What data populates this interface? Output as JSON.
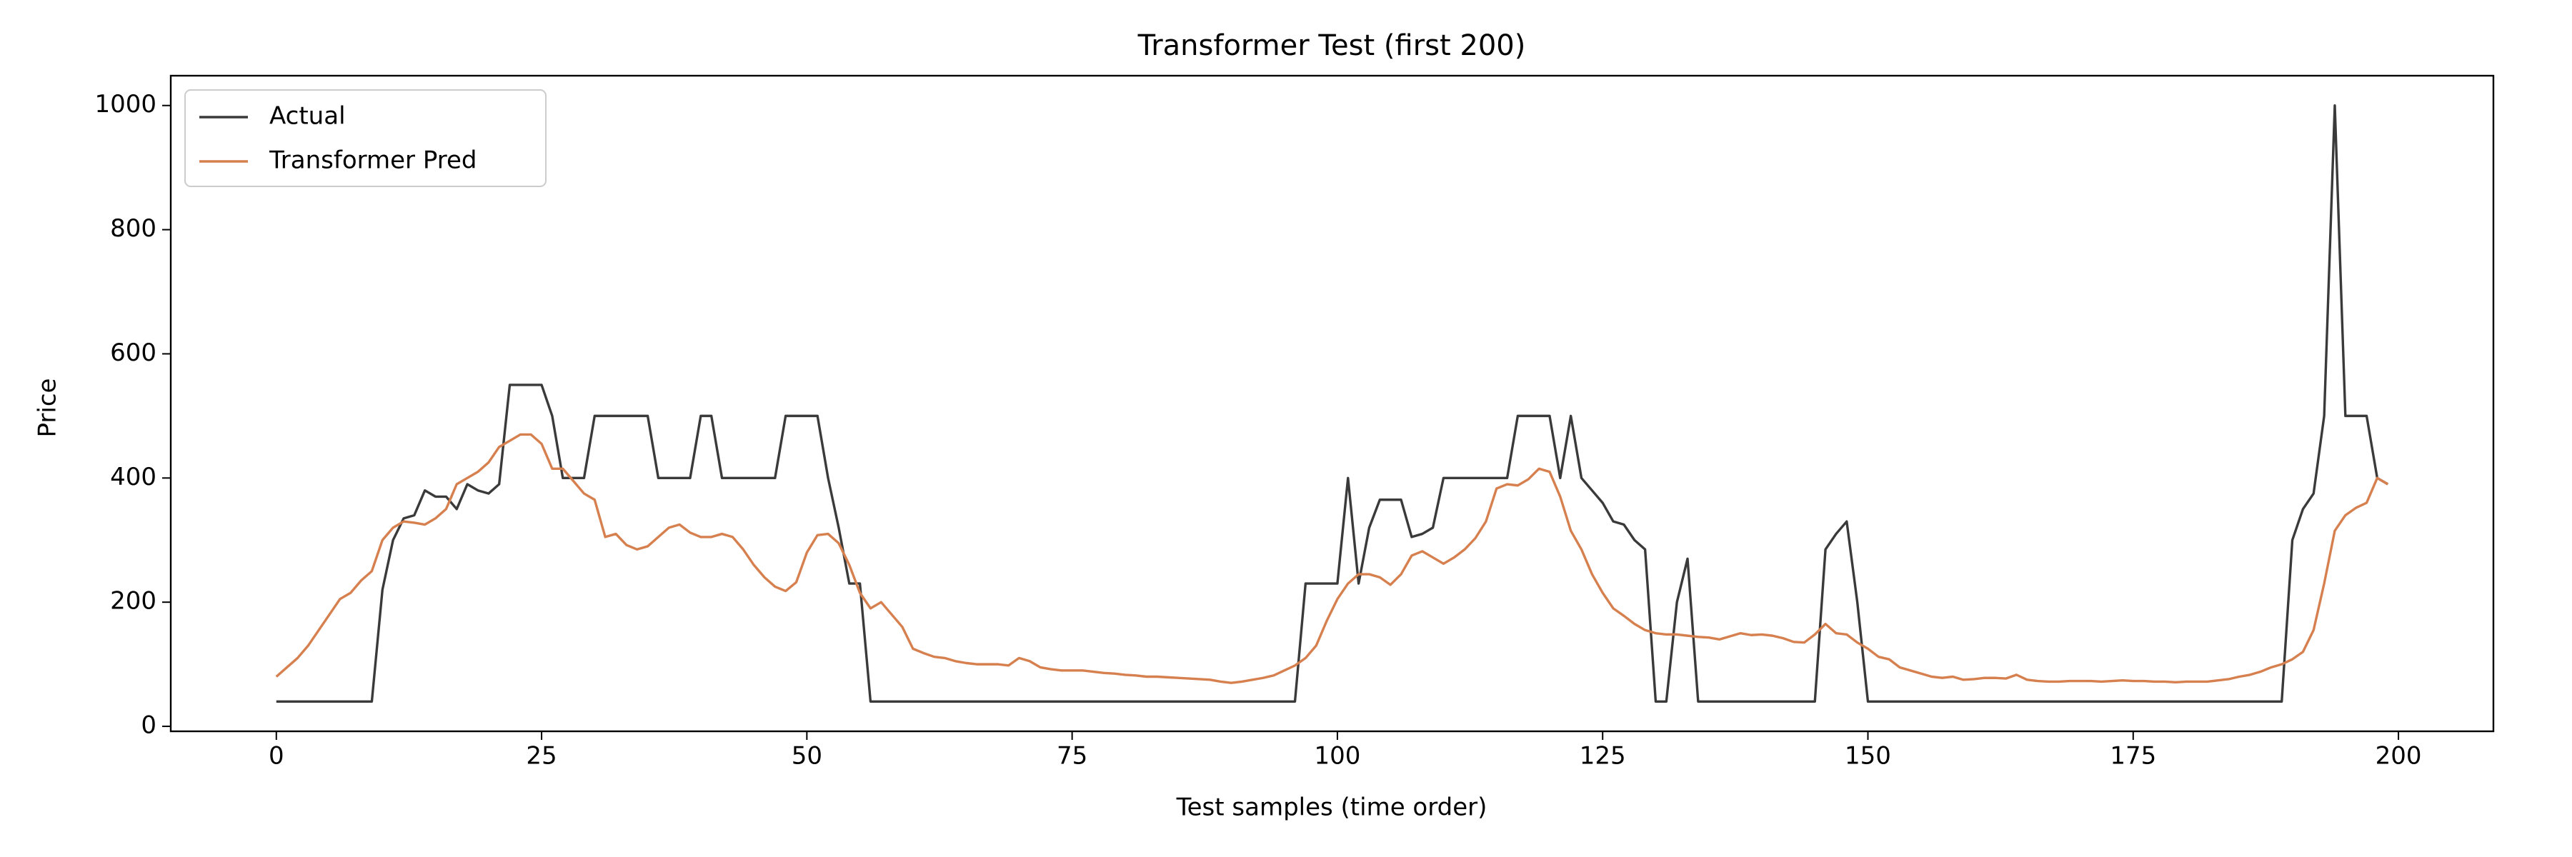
{
  "chart_data": {
    "type": "line",
    "title": "Transformer Test (first 200)",
    "x_label": "Test samples (time order)",
    "y_label": "Price",
    "x": [
      0,
      1,
      2,
      3,
      4,
      5,
      6,
      7,
      8,
      9,
      10,
      11,
      12,
      13,
      14,
      15,
      16,
      17,
      18,
      19,
      20,
      21,
      22,
      23,
      24,
      25,
      26,
      27,
      28,
      29,
      30,
      31,
      32,
      33,
      34,
      35,
      36,
      37,
      38,
      39,
      40,
      41,
      42,
      43,
      44,
      45,
      46,
      47,
      48,
      49,
      50,
      51,
      52,
      53,
      54,
      55,
      56,
      57,
      58,
      59,
      60,
      61,
      62,
      63,
      64,
      65,
      66,
      67,
      68,
      69,
      70,
      71,
      72,
      73,
      74,
      75,
      76,
      77,
      78,
      79,
      80,
      81,
      82,
      83,
      84,
      85,
      86,
      87,
      88,
      89,
      90,
      91,
      92,
      93,
      94,
      95,
      96,
      97,
      98,
      99,
      100,
      101,
      102,
      103,
      104,
      105,
      106,
      107,
      108,
      109,
      110,
      111,
      112,
      113,
      114,
      115,
      116,
      117,
      118,
      119,
      120,
      121,
      122,
      123,
      124,
      125,
      126,
      127,
      128,
      129,
      130,
      131,
      132,
      133,
      134,
      135,
      136,
      137,
      138,
      139,
      140,
      141,
      142,
      143,
      144,
      145,
      146,
      147,
      148,
      149,
      150,
      151,
      152,
      153,
      154,
      155,
      156,
      157,
      158,
      159,
      160,
      161,
      162,
      163,
      164,
      165,
      166,
      167,
      168,
      169,
      170,
      171,
      172,
      173,
      174,
      175,
      176,
      177,
      178,
      179,
      180,
      181,
      182,
      183,
      184,
      185,
      186,
      187,
      188,
      189,
      190,
      191,
      192,
      193,
      194,
      195,
      196,
      197,
      198,
      199
    ],
    "series": [
      {
        "name": "Actual",
        "color": "#3a3a3a",
        "values": [
          40,
          40,
          40,
          40,
          40,
          40,
          40,
          40,
          40,
          40,
          220,
          300,
          335,
          340,
          380,
          370,
          370,
          350,
          390,
          380,
          375,
          390,
          550,
          550,
          550,
          550,
          500,
          400,
          400,
          400,
          500,
          500,
          500,
          500,
          500,
          500,
          400,
          400,
          400,
          400,
          500,
          500,
          400,
          400,
          400,
          400,
          400,
          400,
          500,
          500,
          500,
          500,
          400,
          320,
          230,
          230,
          40,
          40,
          40,
          40,
          40,
          40,
          40,
          40,
          40,
          40,
          40,
          40,
          40,
          40,
          40,
          40,
          40,
          40,
          40,
          40,
          40,
          40,
          40,
          40,
          40,
          40,
          40,
          40,
          40,
          40,
          40,
          40,
          40,
          40,
          40,
          40,
          40,
          40,
          40,
          40,
          40,
          230,
          230,
          230,
          230,
          400,
          230,
          320,
          365,
          365,
          365,
          305,
          310,
          320,
          400,
          400,
          400,
          400,
          400,
          400,
          400,
          500,
          500,
          500,
          500,
          400,
          500,
          400,
          380,
          360,
          330,
          325,
          300,
          285,
          40,
          40,
          200,
          270,
          40,
          40,
          40,
          40,
          40,
          40,
          40,
          40,
          40,
          40,
          40,
          40,
          285,
          310,
          330,
          200,
          40,
          40,
          40,
          40,
          40,
          40,
          40,
          40,
          40,
          40,
          40,
          40,
          40,
          40,
          40,
          40,
          40,
          40,
          40,
          40,
          40,
          40,
          40,
          40,
          40,
          40,
          40,
          40,
          40,
          40,
          40,
          40,
          40,
          40,
          40,
          40,
          40,
          40,
          40,
          40,
          300,
          350,
          375,
          500,
          1000,
          500,
          500,
          500,
          400,
          390
        ]
      },
      {
        "name": "Transformer Pred",
        "color": "#d6804f",
        "values": [
          80,
          95,
          110,
          130,
          155,
          180,
          205,
          215,
          235,
          250,
          300,
          320,
          330,
          328,
          325,
          335,
          350,
          390,
          400,
          410,
          425,
          450,
          460,
          470,
          470,
          455,
          415,
          415,
          395,
          375,
          365,
          305,
          310,
          292,
          285,
          290,
          305,
          320,
          325,
          312,
          305,
          305,
          310,
          305,
          285,
          260,
          240,
          225,
          218,
          232,
          280,
          308,
          310,
          295,
          260,
          215,
          190,
          200,
          180,
          160,
          125,
          118,
          112,
          110,
          105,
          102,
          100,
          100,
          100,
          98,
          110,
          105,
          95,
          92,
          90,
          90,
          90,
          88,
          86,
          85,
          83,
          82,
          80,
          80,
          79,
          78,
          77,
          76,
          75,
          72,
          70,
          72,
          75,
          78,
          82,
          90,
          98,
          110,
          130,
          170,
          205,
          230,
          245,
          245,
          240,
          228,
          245,
          275,
          282,
          272,
          262,
          272,
          285,
          303,
          330,
          383,
          390,
          388,
          398,
          415,
          410,
          370,
          315,
          285,
          245,
          215,
          190,
          178,
          165,
          155,
          150,
          148,
          148,
          146,
          144,
          143,
          140,
          145,
          150,
          147,
          148,
          146,
          142,
          136,
          135,
          148,
          165,
          150,
          148,
          135,
          125,
          112,
          108,
          95,
          90,
          85,
          80,
          78,
          80,
          75,
          76,
          78,
          78,
          77,
          83,
          75,
          73,
          72,
          72,
          73,
          73,
          73,
          72,
          73,
          74,
          73,
          73,
          72,
          72,
          71,
          72,
          72,
          72,
          74,
          76,
          80,
          83,
          88,
          95,
          100,
          108,
          120,
          155,
          230,
          315,
          340,
          352,
          360,
          400,
          390
        ]
      }
    ],
    "xlim": [
      -9.95,
      208.95
    ],
    "ylim": [
      -8,
      1048
    ],
    "xticks": [
      0,
      25,
      50,
      75,
      100,
      125,
      150,
      175,
      200
    ],
    "yticks": [
      0,
      200,
      400,
      600,
      800,
      1000
    ],
    "legend": "upper left"
  }
}
